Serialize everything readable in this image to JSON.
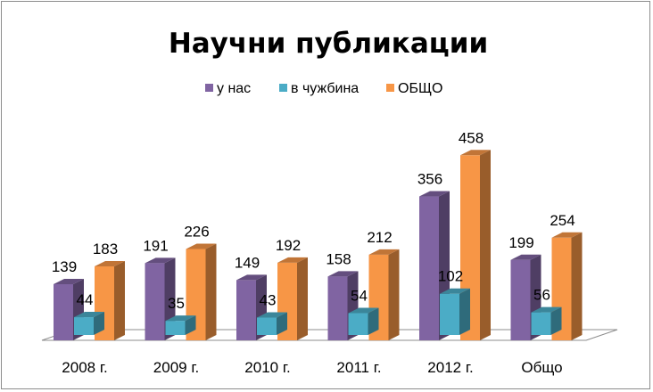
{
  "chart_data": {
    "type": "bar",
    "title": "Научни публикации",
    "categories": [
      "2008 г.",
      "2009 г.",
      "2010 г.",
      "2011 г.",
      "2012 г.",
      "Общо"
    ],
    "series": [
      {
        "name": "у нас",
        "values": [
          139,
          191,
          149,
          158,
          356,
          199
        ],
        "color": "#8064a2"
      },
      {
        "name": "в чужбина",
        "values": [
          44,
          35,
          43,
          54,
          102,
          56
        ],
        "color": "#4bacc6"
      },
      {
        "name": "ОБЩО",
        "values": [
          183,
          226,
          192,
          212,
          458,
          254
        ],
        "color": "#f79646"
      }
    ],
    "ylim": [
      0,
      500
    ],
    "grid": false,
    "legend": "top",
    "data_labels": true,
    "style": "3d-clustered-column"
  }
}
